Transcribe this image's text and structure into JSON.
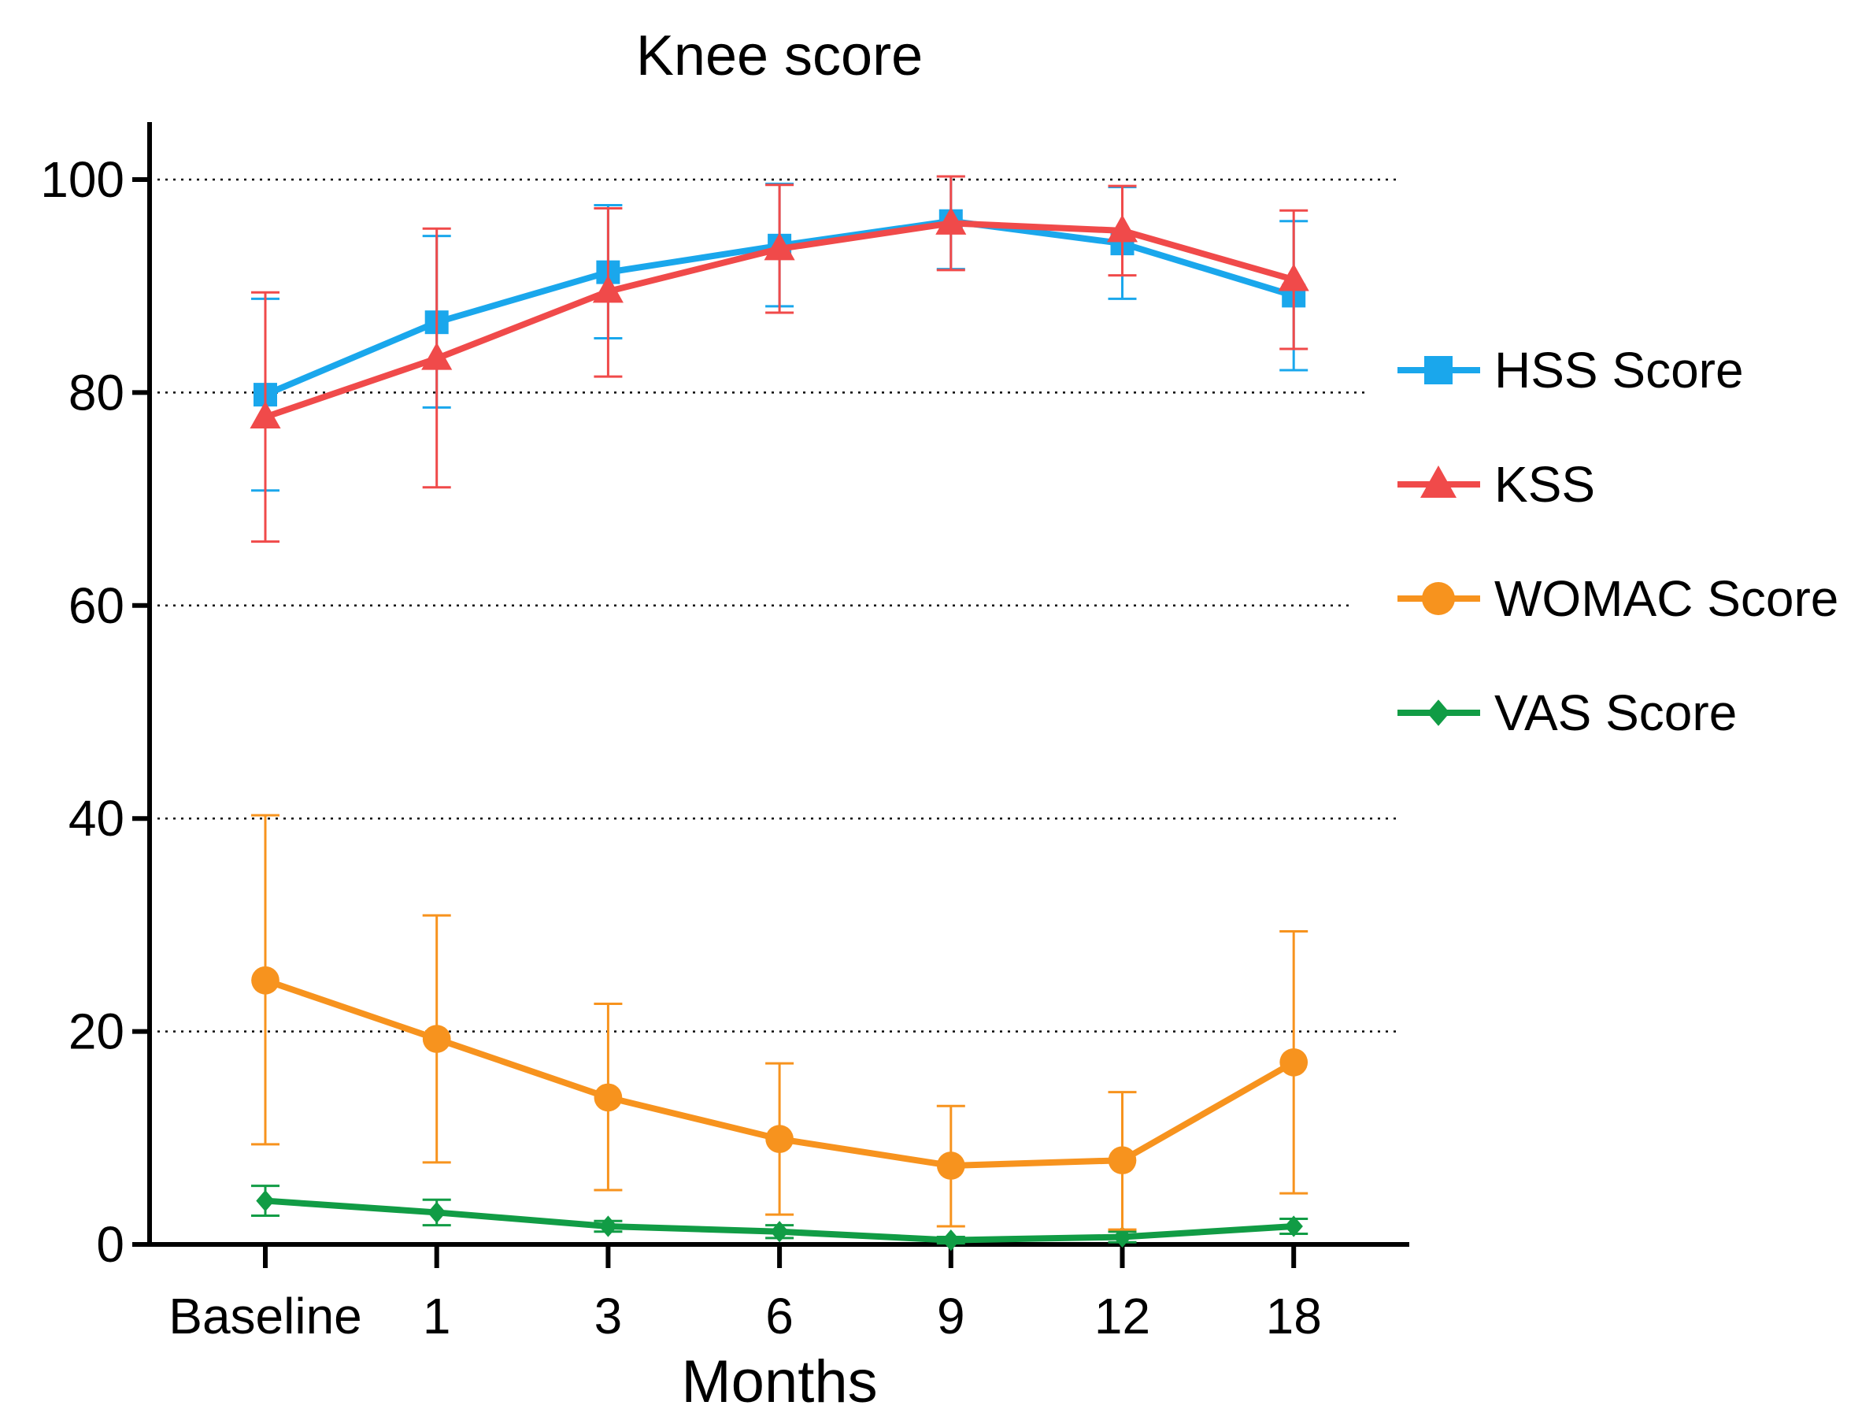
{
  "chart_data": {
    "type": "line",
    "title": "Knee score",
    "xlabel": "Months",
    "ylabel": "",
    "categories": [
      "Baseline",
      "1",
      "3",
      "6",
      "9",
      "12",
      "18"
    ],
    "ylim": [
      0,
      105
    ],
    "yticks": [
      0,
      20,
      40,
      60,
      80,
      100
    ],
    "grid": "horizontal dotted",
    "legend_position": "right",
    "series": [
      {
        "name": "HSS Score",
        "color": "#1aa7ec",
        "marker": "square",
        "values": [
          79.8,
          86.6,
          91.3,
          93.8,
          96.1,
          94.0,
          89.1
        ],
        "err_low": [
          70.8,
          78.6,
          85.1,
          88.1,
          91.6,
          88.8,
          82.1
        ],
        "err_high": [
          88.8,
          94.7,
          97.6,
          99.6,
          100.3,
          99.3,
          96.1
        ]
      },
      {
        "name": "KSS",
        "color": "#f04a4a",
        "marker": "triangle",
        "values": [
          77.7,
          83.2,
          89.5,
          93.5,
          95.9,
          95.2,
          90.6
        ],
        "err_low": [
          66.0,
          71.1,
          81.5,
          87.5,
          91.5,
          91.0,
          84.1
        ],
        "err_high": [
          89.4,
          95.4,
          97.3,
          99.5,
          100.3,
          99.4,
          97.1
        ]
      },
      {
        "name": "WOMAC Score",
        "color": "#f7931e",
        "marker": "circle",
        "values": [
          24.8,
          19.3,
          13.8,
          9.9,
          7.4,
          7.9,
          17.1
        ],
        "err_low": [
          9.4,
          7.7,
          5.1,
          2.8,
          1.7,
          1.4,
          4.8
        ],
        "err_high": [
          40.3,
          30.9,
          22.6,
          17.0,
          13.0,
          14.3,
          29.4
        ]
      },
      {
        "name": "VAS Score",
        "color": "#119c45",
        "marker": "diamond",
        "values": [
          4.1,
          3.0,
          1.7,
          1.2,
          0.4,
          0.7,
          1.7
        ],
        "err_low": [
          2.7,
          1.8,
          1.2,
          0.6,
          0.1,
          0.2,
          1.0
        ],
        "err_high": [
          5.5,
          4.2,
          2.2,
          1.8,
          0.7,
          1.2,
          2.4
        ]
      }
    ]
  }
}
